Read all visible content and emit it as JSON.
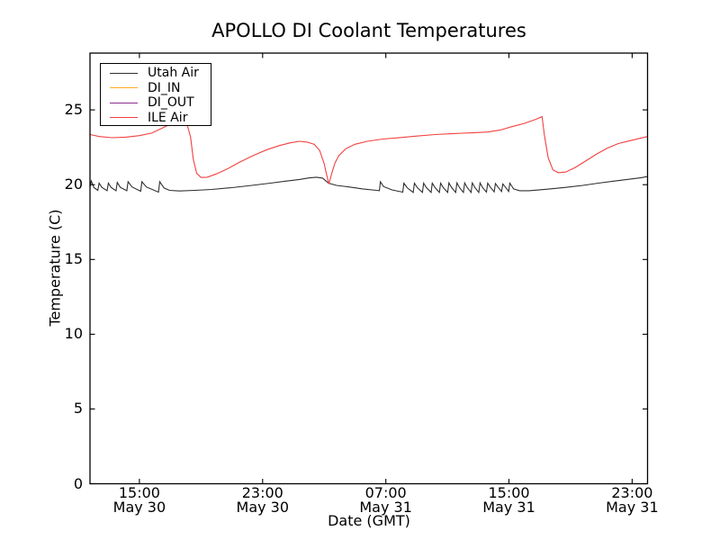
{
  "chart_data": {
    "type": "line",
    "title": "APOLLO DI Coolant Temperatures",
    "xlabel": "Date (GMT)",
    "ylabel": "Temperature (C)",
    "grid": false,
    "legend_position": "upper left",
    "xlim_hours": [
      11.79,
      48.0
    ],
    "ylim": [
      0,
      28.8
    ],
    "x_ticks": [
      {
        "t": 15,
        "time": "15:00",
        "date": "May 30"
      },
      {
        "t": 23,
        "time": "23:00",
        "date": "May 30"
      },
      {
        "t": 31,
        "time": "07:00",
        "date": "May 31"
      },
      {
        "t": 39,
        "time": "15:00",
        "date": "May 31"
      },
      {
        "t": 47,
        "time": "23:00",
        "date": "May 31"
      }
    ],
    "y_ticks": [
      0,
      5,
      10,
      15,
      20,
      25
    ],
    "legend": [
      {
        "name": "Utah Air",
        "color": "#2f2f2f"
      },
      {
        "name": "DI_IN",
        "color": "#ffaa22"
      },
      {
        "name": "DI_OUT",
        "color": "#882d8f"
      },
      {
        "name": "ILE Air",
        "color": "#f34040"
      }
    ],
    "series": [
      {
        "name": "Utah Air",
        "color": "#2f2f2f",
        "points": [
          [
            11.79,
            19.85
          ],
          [
            11.87,
            20.25
          ],
          [
            12.05,
            19.8
          ],
          [
            12.3,
            19.62
          ],
          [
            12.38,
            20.1
          ],
          [
            12.56,
            19.82
          ],
          [
            12.9,
            19.6
          ],
          [
            12.98,
            20.1
          ],
          [
            13.16,
            19.82
          ],
          [
            13.48,
            19.6
          ],
          [
            13.56,
            20.15
          ],
          [
            13.76,
            19.82
          ],
          [
            14.18,
            19.6
          ],
          [
            14.26,
            20.2
          ],
          [
            14.52,
            19.85
          ],
          [
            15.08,
            19.56
          ],
          [
            15.16,
            20.2
          ],
          [
            15.45,
            19.85
          ],
          [
            16.24,
            19.5
          ],
          [
            16.32,
            20.2
          ],
          [
            16.6,
            19.78
          ],
          [
            16.95,
            19.62
          ],
          [
            17.6,
            19.58
          ],
          [
            18.6,
            19.62
          ],
          [
            19.7,
            19.68
          ],
          [
            21.0,
            19.8
          ],
          [
            22.3,
            19.95
          ],
          [
            23.5,
            20.1
          ],
          [
            24.6,
            20.25
          ],
          [
            25.4,
            20.35
          ],
          [
            26.0,
            20.45
          ],
          [
            26.5,
            20.5
          ],
          [
            26.9,
            20.44
          ],
          [
            27.28,
            20.1
          ],
          [
            27.8,
            19.95
          ],
          [
            28.6,
            19.85
          ],
          [
            29.5,
            19.72
          ],
          [
            30.4,
            19.62
          ],
          [
            30.58,
            19.6
          ],
          [
            30.65,
            20.2
          ],
          [
            30.85,
            19.88
          ],
          [
            31.4,
            19.65
          ],
          [
            32.1,
            19.5
          ],
          [
            32.18,
            20.1
          ],
          [
            32.38,
            19.8
          ],
          [
            32.78,
            19.48
          ],
          [
            32.86,
            20.1
          ],
          [
            33.05,
            19.8
          ],
          [
            33.38,
            19.48
          ],
          [
            33.46,
            20.1
          ],
          [
            33.64,
            19.8
          ],
          [
            33.94,
            19.48
          ],
          [
            34.02,
            20.1
          ],
          [
            34.2,
            19.8
          ],
          [
            34.48,
            19.48
          ],
          [
            34.56,
            20.1
          ],
          [
            34.74,
            19.8
          ],
          [
            35.02,
            19.48
          ],
          [
            35.1,
            20.12
          ],
          [
            35.28,
            19.8
          ],
          [
            35.54,
            19.48
          ],
          [
            35.62,
            20.12
          ],
          [
            35.79,
            19.8
          ],
          [
            36.04,
            19.48
          ],
          [
            36.12,
            20.12
          ],
          [
            36.29,
            19.8
          ],
          [
            36.54,
            19.48
          ],
          [
            36.62,
            20.12
          ],
          [
            36.79,
            19.8
          ],
          [
            37.04,
            19.48
          ],
          [
            37.12,
            20.12
          ],
          [
            37.29,
            19.8
          ],
          [
            37.54,
            19.5
          ],
          [
            37.62,
            20.1
          ],
          [
            37.8,
            19.82
          ],
          [
            38.04,
            19.52
          ],
          [
            38.12,
            20.08
          ],
          [
            38.3,
            19.82
          ],
          [
            38.52,
            19.55
          ],
          [
            38.6,
            20.05
          ],
          [
            38.78,
            19.82
          ],
          [
            38.98,
            19.55
          ],
          [
            39.06,
            20.1
          ],
          [
            39.3,
            19.72
          ],
          [
            39.7,
            19.6
          ],
          [
            40.3,
            19.6
          ],
          [
            41.5,
            19.7
          ],
          [
            42.7,
            19.82
          ],
          [
            43.8,
            19.95
          ],
          [
            44.8,
            20.1
          ],
          [
            45.9,
            20.25
          ],
          [
            46.9,
            20.38
          ],
          [
            47.6,
            20.47
          ],
          [
            48.0,
            20.55
          ]
        ]
      },
      {
        "name": "DI_IN",
        "color": "#ffaa22",
        "points": []
      },
      {
        "name": "DI_OUT",
        "color": "#882d8f",
        "points": []
      },
      {
        "name": "ILE Air",
        "color": "#f34040",
        "points": [
          [
            11.79,
            23.35
          ],
          [
            12.4,
            23.22
          ],
          [
            13.2,
            23.14
          ],
          [
            14.1,
            23.18
          ],
          [
            15.0,
            23.28
          ],
          [
            15.8,
            23.45
          ],
          [
            16.5,
            23.8
          ],
          [
            17.1,
            24.1
          ],
          [
            17.7,
            24.2
          ],
          [
            18.1,
            24.0
          ],
          [
            18.32,
            23.2
          ],
          [
            18.5,
            21.7
          ],
          [
            18.72,
            20.75
          ],
          [
            19.0,
            20.48
          ],
          [
            19.4,
            20.5
          ],
          [
            20.0,
            20.72
          ],
          [
            20.7,
            21.05
          ],
          [
            21.5,
            21.5
          ],
          [
            22.4,
            21.95
          ],
          [
            23.3,
            22.35
          ],
          [
            24.1,
            22.62
          ],
          [
            24.8,
            22.8
          ],
          [
            25.4,
            22.9
          ],
          [
            25.9,
            22.85
          ],
          [
            26.35,
            22.7
          ],
          [
            26.7,
            22.3
          ],
          [
            27.0,
            21.4
          ],
          [
            27.15,
            20.7
          ],
          [
            27.3,
            20.05
          ],
          [
            27.5,
            20.8
          ],
          [
            27.7,
            21.45
          ],
          [
            27.95,
            21.95
          ],
          [
            28.4,
            22.4
          ],
          [
            29.0,
            22.7
          ],
          [
            29.8,
            22.9
          ],
          [
            30.8,
            23.05
          ],
          [
            31.9,
            23.15
          ],
          [
            33.0,
            23.25
          ],
          [
            34.2,
            23.35
          ],
          [
            35.4,
            23.42
          ],
          [
            36.6,
            23.47
          ],
          [
            37.6,
            23.52
          ],
          [
            38.4,
            23.65
          ],
          [
            39.2,
            23.88
          ],
          [
            40.0,
            24.1
          ],
          [
            40.7,
            24.35
          ],
          [
            41.15,
            24.55
          ],
          [
            41.3,
            23.3
          ],
          [
            41.55,
            21.8
          ],
          [
            41.85,
            21.0
          ],
          [
            42.2,
            20.8
          ],
          [
            42.7,
            20.85
          ],
          [
            43.3,
            21.15
          ],
          [
            44.0,
            21.6
          ],
          [
            44.7,
            22.05
          ],
          [
            45.4,
            22.45
          ],
          [
            46.1,
            22.75
          ],
          [
            46.9,
            22.95
          ],
          [
            47.5,
            23.1
          ],
          [
            48.0,
            23.22
          ]
        ]
      }
    ]
  }
}
